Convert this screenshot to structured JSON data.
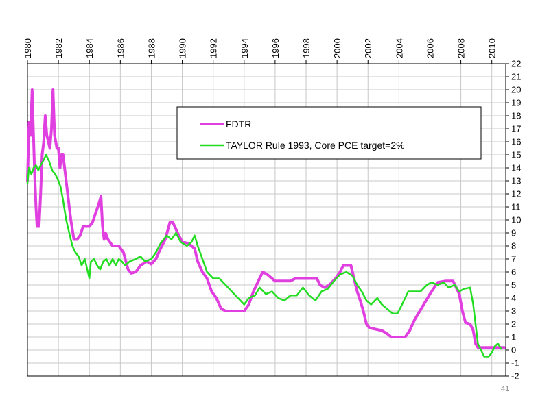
{
  "page": {
    "number": "41"
  },
  "chart_data": {
    "type": "line",
    "title": "",
    "xlabel": "",
    "ylabel": "",
    "xlim": [
      1980,
      2010.9
    ],
    "ylim": [
      -2,
      22
    ],
    "x_ticks": [
      1980,
      1982,
      1984,
      1986,
      1988,
      1990,
      1992,
      1994,
      1996,
      1998,
      2000,
      2002,
      2004,
      2006,
      2008,
      2010
    ],
    "y_ticks": [
      -2,
      -1,
      0,
      1,
      2,
      3,
      4,
      5,
      6,
      7,
      8,
      9,
      10,
      11,
      12,
      13,
      14,
      15,
      16,
      17,
      18,
      19,
      20,
      21,
      22
    ],
    "grid": true,
    "legend_position": "top-right",
    "series": [
      {
        "name": "FDTR",
        "color": "#e040e0",
        "points": [
          [
            1980.0,
            13
          ],
          [
            1980.1,
            17.5
          ],
          [
            1980.2,
            16.5
          ],
          [
            1980.3,
            20
          ],
          [
            1980.35,
            18
          ],
          [
            1980.45,
            14
          ],
          [
            1980.55,
            11
          ],
          [
            1980.62,
            9.5
          ],
          [
            1980.75,
            9.5
          ],
          [
            1980.85,
            12
          ],
          [
            1980.95,
            15
          ],
          [
            1981.05,
            16
          ],
          [
            1981.15,
            18
          ],
          [
            1981.25,
            16.5
          ],
          [
            1981.35,
            16
          ],
          [
            1981.45,
            15.5
          ],
          [
            1981.55,
            17
          ],
          [
            1981.65,
            20
          ],
          [
            1981.75,
            16.5
          ],
          [
            1981.9,
            15.5
          ],
          [
            1982.0,
            15.5
          ],
          [
            1982.1,
            14
          ],
          [
            1982.2,
            15
          ],
          [
            1982.3,
            15
          ],
          [
            1982.4,
            14
          ],
          [
            1982.5,
            13
          ],
          [
            1982.6,
            12
          ],
          [
            1982.8,
            10
          ],
          [
            1983.0,
            8.5
          ],
          [
            1983.2,
            8.5
          ],
          [
            1983.4,
            8.8
          ],
          [
            1983.6,
            9.5
          ],
          [
            1984.0,
            9.5
          ],
          [
            1984.2,
            9.8
          ],
          [
            1984.4,
            10.5
          ],
          [
            1984.6,
            11.2
          ],
          [
            1984.75,
            11.8
          ],
          [
            1984.85,
            9.5
          ],
          [
            1984.95,
            8.5
          ],
          [
            1985.05,
            9
          ],
          [
            1985.2,
            8.5
          ],
          [
            1985.5,
            8
          ],
          [
            1985.9,
            8
          ],
          [
            1986.2,
            7.5
          ],
          [
            1986.5,
            6.2
          ],
          [
            1986.7,
            5.9
          ],
          [
            1987.0,
            6
          ],
          [
            1987.3,
            6.5
          ],
          [
            1987.7,
            6.8
          ],
          [
            1988.0,
            6.6
          ],
          [
            1988.3,
            7
          ],
          [
            1988.6,
            7.8
          ],
          [
            1988.9,
            8.5
          ],
          [
            1989.2,
            9.8
          ],
          [
            1989.4,
            9.8
          ],
          [
            1989.7,
            9
          ],
          [
            1990.0,
            8.3
          ],
          [
            1990.4,
            8.2
          ],
          [
            1990.8,
            7.8
          ],
          [
            1991.0,
            6.8
          ],
          [
            1991.3,
            6
          ],
          [
            1991.6,
            5.5
          ],
          [
            1991.9,
            4.5
          ],
          [
            1992.2,
            4
          ],
          [
            1992.5,
            3.2
          ],
          [
            1992.8,
            3
          ],
          [
            1993.5,
            3
          ],
          [
            1994.0,
            3
          ],
          [
            1994.3,
            3.5
          ],
          [
            1994.6,
            4.5
          ],
          [
            1995.0,
            5.5
          ],
          [
            1995.2,
            6
          ],
          [
            1995.5,
            5.8
          ],
          [
            1996.0,
            5.3
          ],
          [
            1997.0,
            5.3
          ],
          [
            1997.3,
            5.5
          ],
          [
            1998.0,
            5.5
          ],
          [
            1998.7,
            5.5
          ],
          [
            1998.9,
            5
          ],
          [
            1999.2,
            4.8
          ],
          [
            1999.5,
            5
          ],
          [
            1999.9,
            5.5
          ],
          [
            2000.2,
            6
          ],
          [
            2000.4,
            6.5
          ],
          [
            2000.9,
            6.5
          ],
          [
            2001.1,
            5.5
          ],
          [
            2001.3,
            4.5
          ],
          [
            2001.5,
            3.8
          ],
          [
            2001.7,
            3
          ],
          [
            2001.9,
            2
          ],
          [
            2002.1,
            1.7
          ],
          [
            2002.9,
            1.5
          ],
          [
            2003.3,
            1.2
          ],
          [
            2003.5,
            1
          ],
          [
            2004.4,
            1
          ],
          [
            2004.7,
            1.5
          ],
          [
            2005.0,
            2.3
          ],
          [
            2005.5,
            3.3
          ],
          [
            2006.0,
            4.3
          ],
          [
            2006.5,
            5.2
          ],
          [
            2007.0,
            5.3
          ],
          [
            2007.5,
            5.3
          ],
          [
            2007.7,
            4.8
          ],
          [
            2007.9,
            4.3
          ],
          [
            2008.1,
            3
          ],
          [
            2008.3,
            2.1
          ],
          [
            2008.6,
            2
          ],
          [
            2008.8,
            1.5
          ],
          [
            2008.95,
            0.5
          ],
          [
            2009.1,
            0.2
          ],
          [
            2010.0,
            0.2
          ],
          [
            2010.5,
            0.2
          ],
          [
            2010.8,
            0.2
          ]
        ]
      },
      {
        "name": "TAYLOR Rule 1993, Core PCE target=2%",
        "color": "#22dd22",
        "points": [
          [
            1980.0,
            12.8
          ],
          [
            1980.1,
            14
          ],
          [
            1980.25,
            13.5
          ],
          [
            1980.4,
            14
          ],
          [
            1980.55,
            14.2
          ],
          [
            1980.7,
            13.8
          ],
          [
            1980.85,
            14.2
          ],
          [
            1981.0,
            14.5
          ],
          [
            1981.2,
            15
          ],
          [
            1981.4,
            14.5
          ],
          [
            1981.6,
            13.8
          ],
          [
            1981.8,
            13.5
          ],
          [
            1982.0,
            13
          ],
          [
            1982.15,
            12.5
          ],
          [
            1982.3,
            11.5
          ],
          [
            1982.5,
            10
          ],
          [
            1982.7,
            9
          ],
          [
            1982.9,
            8
          ],
          [
            1983.1,
            7.5
          ],
          [
            1983.3,
            7.2
          ],
          [
            1983.5,
            6.5
          ],
          [
            1983.7,
            7
          ],
          [
            1983.9,
            6
          ],
          [
            1984.0,
            5.5
          ],
          [
            1984.1,
            6.8
          ],
          [
            1984.3,
            7
          ],
          [
            1984.5,
            6.5
          ],
          [
            1984.7,
            6.2
          ],
          [
            1984.9,
            6.8
          ],
          [
            1985.1,
            7
          ],
          [
            1985.3,
            6.5
          ],
          [
            1985.5,
            7
          ],
          [
            1985.7,
            6.5
          ],
          [
            1985.9,
            7
          ],
          [
            1986.1,
            6.8
          ],
          [
            1986.3,
            6.5
          ],
          [
            1986.6,
            6.8
          ],
          [
            1987.0,
            7
          ],
          [
            1987.3,
            7.2
          ],
          [
            1987.6,
            6.8
          ],
          [
            1988.0,
            7
          ],
          [
            1988.3,
            7.5
          ],
          [
            1988.6,
            8.2
          ],
          [
            1989.0,
            8.8
          ],
          [
            1989.3,
            8.5
          ],
          [
            1989.6,
            9
          ],
          [
            1989.9,
            8.3
          ],
          [
            1990.3,
            8
          ],
          [
            1990.6,
            8.3
          ],
          [
            1990.8,
            8.8
          ],
          [
            1991.0,
            8
          ],
          [
            1991.3,
            7
          ],
          [
            1991.6,
            6
          ],
          [
            1992.0,
            5.5
          ],
          [
            1992.4,
            5.5
          ],
          [
            1992.8,
            5
          ],
          [
            1993.2,
            4.5
          ],
          [
            1993.6,
            4
          ],
          [
            1994.0,
            3.5
          ],
          [
            1994.3,
            4
          ],
          [
            1994.7,
            4.2
          ],
          [
            1995.0,
            4.8
          ],
          [
            1995.4,
            4.3
          ],
          [
            1995.8,
            4.5
          ],
          [
            1996.2,
            4
          ],
          [
            1996.6,
            3.8
          ],
          [
            1997.0,
            4.2
          ],
          [
            1997.4,
            4.2
          ],
          [
            1997.8,
            4.8
          ],
          [
            1998.2,
            4.2
          ],
          [
            1998.6,
            3.8
          ],
          [
            1999.0,
            4.5
          ],
          [
            1999.4,
            4.7
          ],
          [
            1999.8,
            5.3
          ],
          [
            2000.2,
            5.8
          ],
          [
            2000.6,
            6
          ],
          [
            2001.0,
            5.7
          ],
          [
            2001.3,
            5
          ],
          [
            2001.6,
            4.5
          ],
          [
            2001.9,
            3.8
          ],
          [
            2002.2,
            3.5
          ],
          [
            2002.6,
            4
          ],
          [
            2002.9,
            3.5
          ],
          [
            2003.2,
            3.2
          ],
          [
            2003.6,
            2.8
          ],
          [
            2003.9,
            2.8
          ],
          [
            2004.2,
            3.5
          ],
          [
            2004.6,
            4.5
          ],
          [
            2005.0,
            4.5
          ],
          [
            2005.4,
            4.5
          ],
          [
            2005.8,
            5
          ],
          [
            2006.1,
            5.2
          ],
          [
            2006.5,
            5
          ],
          [
            2006.9,
            5.2
          ],
          [
            2007.2,
            4.8
          ],
          [
            2007.6,
            5
          ],
          [
            2007.9,
            4.5
          ],
          [
            2008.2,
            4.7
          ],
          [
            2008.6,
            4.8
          ],
          [
            2008.8,
            3.5
          ],
          [
            2008.95,
            2
          ],
          [
            2009.1,
            0.5
          ],
          [
            2009.3,
            0
          ],
          [
            2009.5,
            -0.5
          ],
          [
            2009.8,
            -0.5
          ],
          [
            2010.0,
            -0.2
          ],
          [
            2010.2,
            0.3
          ],
          [
            2010.4,
            0.5
          ],
          [
            2010.6,
            0.1
          ]
        ]
      }
    ]
  }
}
